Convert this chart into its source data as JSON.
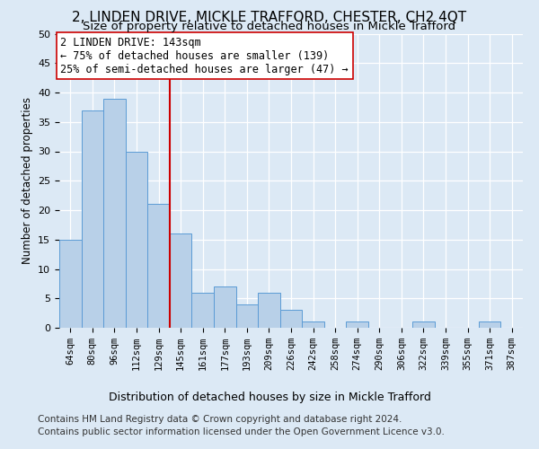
{
  "title": "2, LINDEN DRIVE, MICKLE TRAFFORD, CHESTER, CH2 4QT",
  "subtitle": "Size of property relative to detached houses in Mickle Trafford",
  "xlabel": "Distribution of detached houses by size in Mickle Trafford",
  "ylabel": "Number of detached properties",
  "categories": [
    "64sqm",
    "80sqm",
    "96sqm",
    "112sqm",
    "129sqm",
    "145sqm",
    "161sqm",
    "177sqm",
    "193sqm",
    "209sqm",
    "226sqm",
    "242sqm",
    "258sqm",
    "274sqm",
    "290sqm",
    "306sqm",
    "322sqm",
    "339sqm",
    "355sqm",
    "371sqm",
    "387sqm"
  ],
  "values": [
    15,
    37,
    39,
    30,
    21,
    16,
    6,
    7,
    4,
    6,
    3,
    1,
    0,
    1,
    0,
    0,
    1,
    0,
    0,
    1,
    0
  ],
  "bar_color": "#b8d0e8",
  "bar_edge_color": "#5b9bd5",
  "vline_index": 4.5,
  "vline_color": "#cc0000",
  "annotation_line1": "2 LINDEN DRIVE: 143sqm",
  "annotation_line2": "← 75% of detached houses are smaller (139)",
  "annotation_line3": "25% of semi-detached houses are larger (47) →",
  "annotation_box_color": "#ffffff",
  "annotation_box_edge": "#cc0000",
  "background_color": "#dce9f5",
  "ylim": [
    0,
    50
  ],
  "yticks": [
    0,
    5,
    10,
    15,
    20,
    25,
    30,
    35,
    40,
    45,
    50
  ],
  "footer_line1": "Contains HM Land Registry data © Crown copyright and database right 2024.",
  "footer_line2": "Contains public sector information licensed under the Open Government Licence v3.0.",
  "title_fontsize": 11,
  "subtitle_fontsize": 9.5,
  "ylabel_fontsize": 8.5,
  "tick_fontsize": 8,
  "xtick_fontsize": 7.5,
  "annotation_fontsize": 8.5,
  "xlabel_fontsize": 9,
  "footer_fontsize": 7.5
}
